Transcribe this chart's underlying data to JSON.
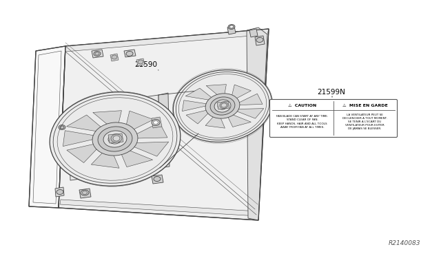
{
  "bg_color": "#ffffff",
  "line_color": "#444444",
  "label_21590": "21590",
  "label_21599N": "21599N",
  "label_ref": "R2140083",
  "caution_title_en": "⚠  CAUTION",
  "caution_title_fr": "⚠  MISE EN GARDE",
  "caution_text_en": "FAN BLADE CAN START AT ANY TIME.\nSTAND CLEAR OF FAN.\nKEEP HANDS, HAIR AND ALL TOOLS\nAWAY FROM FAN AT ALL TIMES.",
  "caution_text_fr": "LA VENTILATEUR PEUT SE\nDECLENCHER A TOUT MOMENT.\nSE TENIR A L'ECART DU\nVENTILATEUR POUR EVITER\nDE JAMAIS SE BLESSER.",
  "figsize": [
    6.4,
    3.72
  ],
  "dpi": 100,
  "shroud_color": "#555555",
  "fan_color": "#444444",
  "detail_color": "#666666"
}
